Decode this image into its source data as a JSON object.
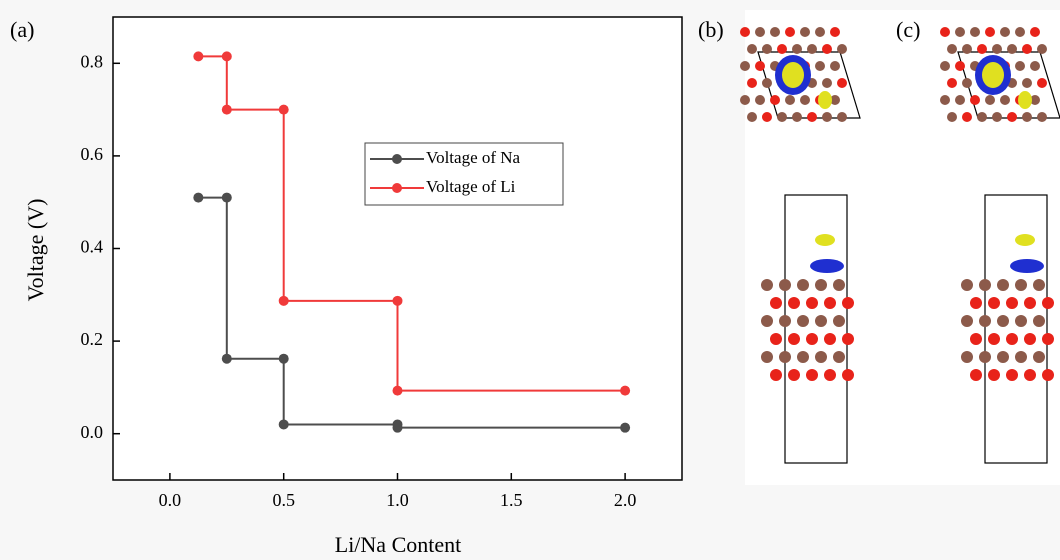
{
  "chart_data": {
    "type": "step-line",
    "panel_labels": [
      "(a)",
      "(b)",
      "(c)"
    ],
    "x_label": "Li/Na Content",
    "y_label": "Voltage (V)",
    "xlim": [
      -0.25,
      2.25
    ],
    "ylim": [
      -0.1,
      0.9
    ],
    "xticks": [
      {
        "value": 0,
        "label": "0.0"
      },
      0.5,
      {
        "value": 1,
        "label": "1.0"
      },
      1.5,
      {
        "value": 2,
        "label": "2.0"
      }
    ],
    "yticks": [
      {
        "value": 0,
        "label": "0.0"
      },
      0.2,
      0.4,
      0.6,
      0.8
    ],
    "legend": "upper right",
    "series": [
      {
        "name": "Voltage of Na",
        "color": "#4d4d4d",
        "x": [
          0.125,
          0.25,
          0.25,
          0.5,
          0.5,
          1.0,
          1.0,
          2.0
        ],
        "values": [
          0.51,
          0.51,
          0.162,
          0.162,
          0.02,
          0.02,
          0.013,
          0.013
        ]
      },
      {
        "name": "Voltage of Li",
        "color": "#f03a3a",
        "x": [
          0.125,
          0.25,
          0.25,
          0.5,
          0.5,
          1.0,
          1.0,
          2.0
        ],
        "values": [
          0.815,
          0.815,
          0.7,
          0.7,
          0.287,
          0.287,
          0.093,
          0.093
        ]
      }
    ]
  }
}
